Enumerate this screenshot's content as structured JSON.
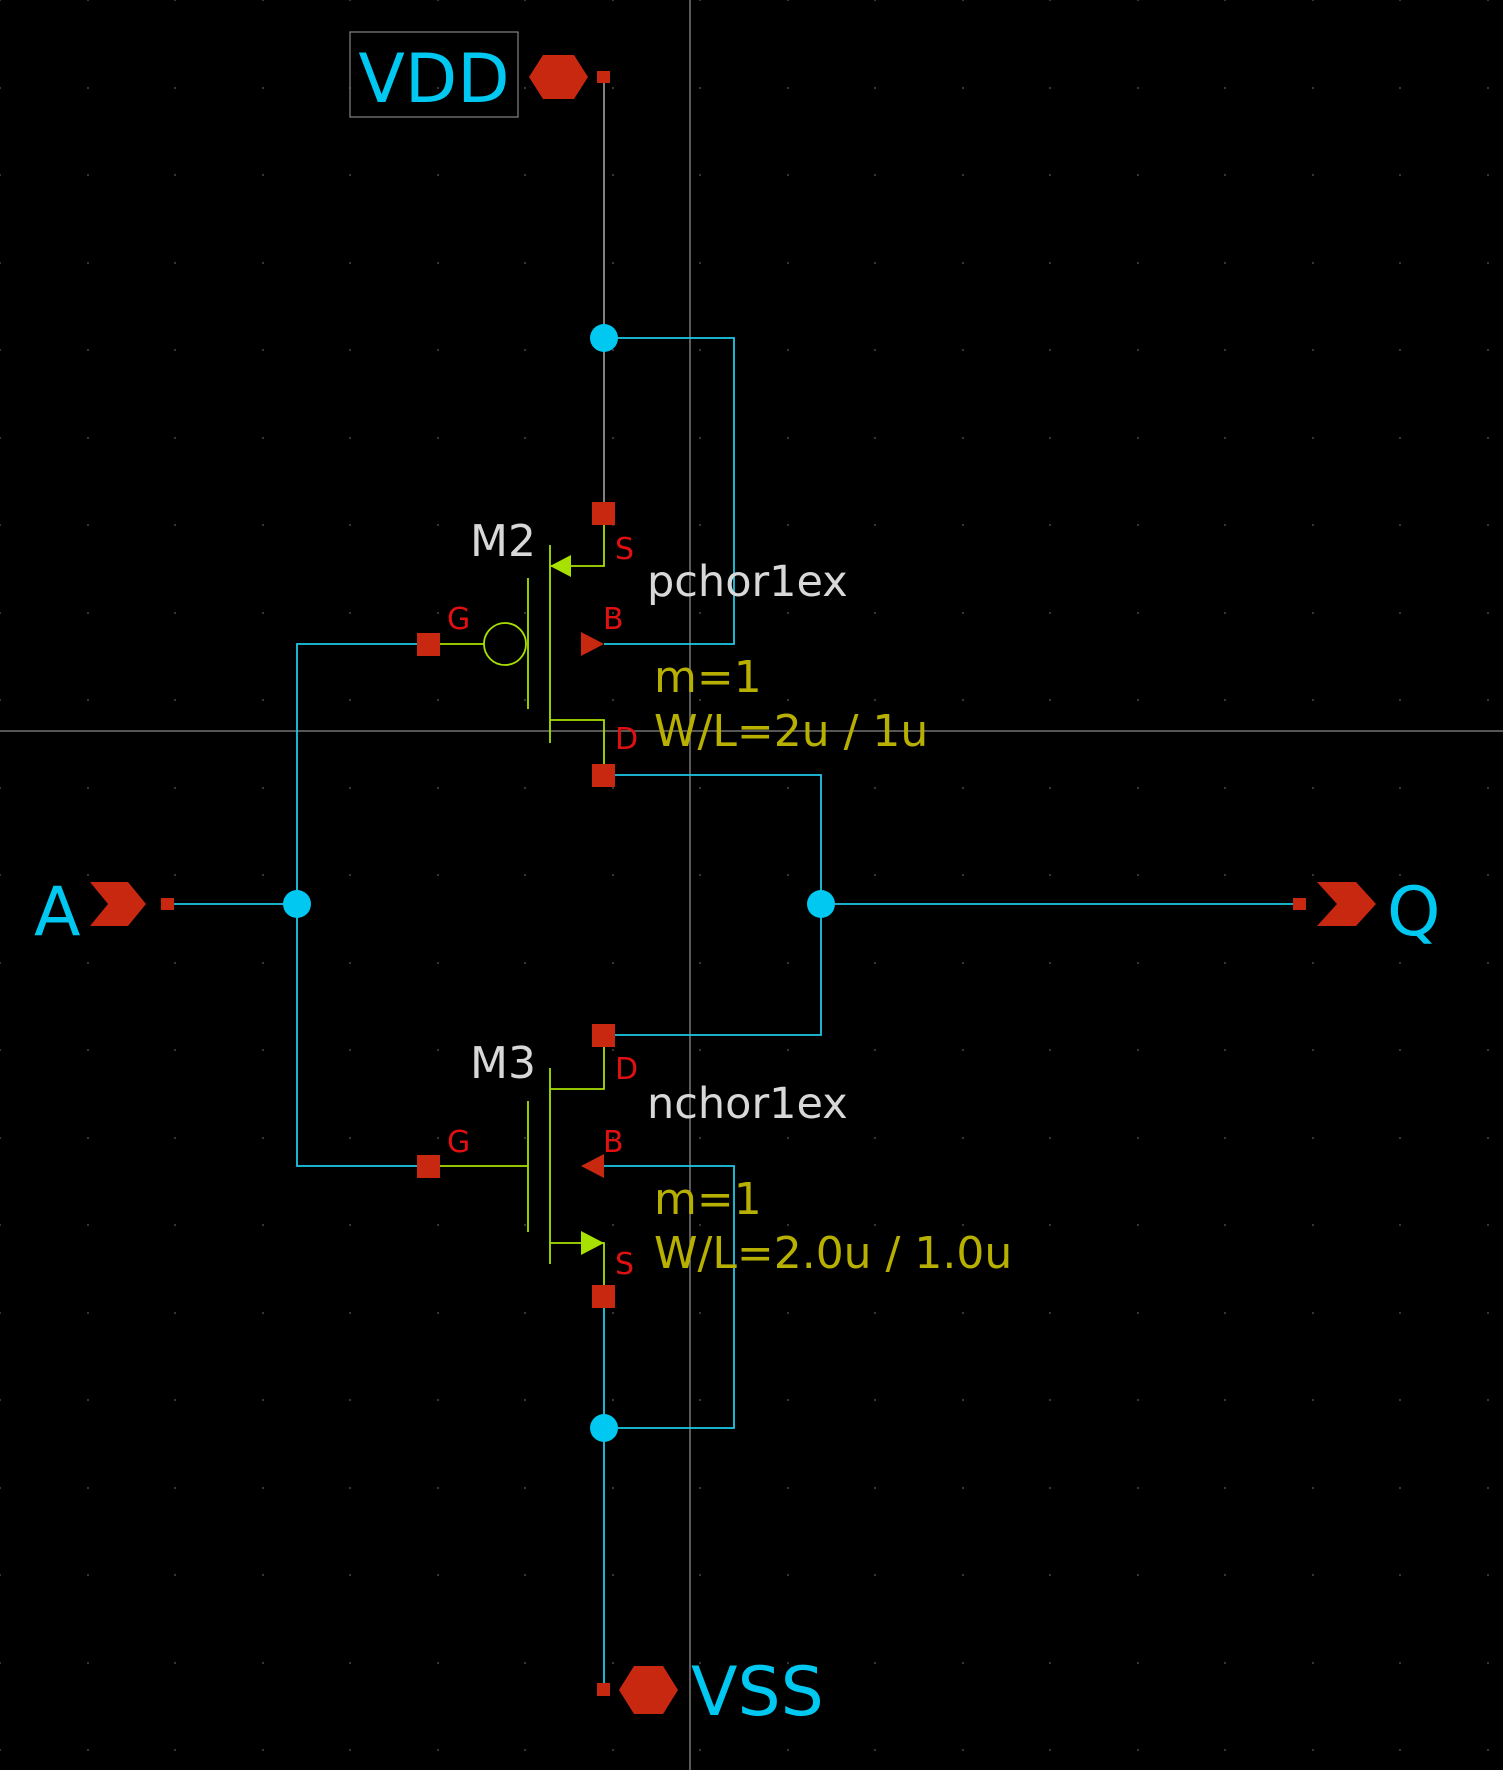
{
  "colors": {
    "background": "#000000",
    "wire": "#1ec8e6",
    "junction": "#00c8f0",
    "port": "#c82810",
    "pin_marker": "#c82810",
    "pin_label": "#e01010",
    "device_symbol": "#a8e000",
    "device_name": "#d8d8d8",
    "device_param": "#b8b000",
    "axis": "#8a8a8a",
    "grid_dot": "#3a3a3a",
    "net_label": "#00c8f0",
    "vdd_box": "#7a7a7a",
    "pin_stub": "#a0a0a0"
  },
  "ports": {
    "vdd": {
      "label": "VDD",
      "icon": "hexagon-port-icon"
    },
    "vss": {
      "label": "VSS",
      "icon": "hexagon-port-icon"
    },
    "a": {
      "label": "A",
      "icon": "input-chevron-icon"
    },
    "q": {
      "label": "Q",
      "icon": "output-chevron-icon"
    }
  },
  "devices": {
    "m2": {
      "name": "M2",
      "model": "pchor1ex",
      "mult": "m=1",
      "wl": "W/L=2u / 1u",
      "pins": {
        "s": "S",
        "g": "G",
        "b": "B",
        "d": "D"
      }
    },
    "m3": {
      "name": "M3",
      "model": "nchor1ex",
      "mult": "m=1",
      "wl": "W/L=2.0u / 1.0u",
      "pins": {
        "d": "D",
        "g": "G",
        "b": "B",
        "s": "S"
      }
    }
  }
}
